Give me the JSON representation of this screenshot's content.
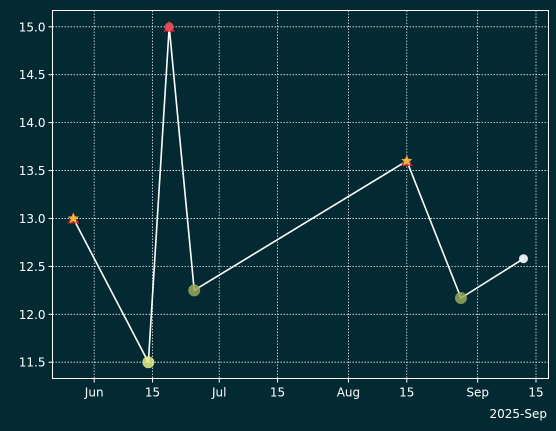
{
  "chart_data": {
    "type": "line",
    "title": "",
    "xlabel": "",
    "ylabel": "",
    "x_axis_type": "date",
    "xlim": [
      "2025-05-22",
      "2025-09-18"
    ],
    "ylim": [
      11.33,
      15.17
    ],
    "x_ticks": [
      {
        "date": "2025-06-01",
        "label": "Jun"
      },
      {
        "date": "2025-06-15",
        "label": "15"
      },
      {
        "date": "2025-07-01",
        "label": "Jul"
      },
      {
        "date": "2025-07-15",
        "label": "15"
      },
      {
        "date": "2025-08-01",
        "label": "Aug"
      },
      {
        "date": "2025-08-15",
        "label": "15"
      },
      {
        "date": "2025-09-01",
        "label": "Sep"
      },
      {
        "date": "2025-09-15",
        "label": "15"
      }
    ],
    "x_offset_label": "2025-Sep",
    "y_ticks": [
      11.5,
      12.0,
      12.5,
      13.0,
      13.5,
      14.0,
      14.5,
      15.0
    ],
    "y_tick_labels": [
      "11.5",
      "12.0",
      "12.5",
      "13.0",
      "13.5",
      "14.0",
      "14.5",
      "15.0"
    ],
    "grid": true,
    "legend": "none",
    "series": [
      {
        "x": [
          "2025-05-27",
          "2025-06-14",
          "2025-06-19",
          "2025-06-25",
          "2025-08-15",
          "2025-08-28",
          "2025-09-12"
        ],
        "values": [
          13.0,
          11.5,
          15.0,
          12.25,
          13.6,
          12.17,
          12.58
        ],
        "line_color": "#ffffff"
      }
    ],
    "markers": [
      {
        "x": "2025-05-27",
        "y": 13.0,
        "shape": "triangle",
        "color": "#cc2233"
      },
      {
        "x": "2025-05-27",
        "y": 13.0,
        "shape": "star",
        "color": "#f2c43a"
      },
      {
        "x": "2025-06-14",
        "y": 11.5,
        "shape": "circle-large",
        "color": "#e8f08a"
      },
      {
        "x": "2025-06-19",
        "y": 15.0,
        "shape": "triangle",
        "color": "#cc2233"
      },
      {
        "x": "2025-06-19",
        "y": 15.0,
        "shape": "circle",
        "color": "#e8505b"
      },
      {
        "x": "2025-06-25",
        "y": 12.25,
        "shape": "circle-large",
        "color": "#9aa85a"
      },
      {
        "x": "2025-08-15",
        "y": 13.6,
        "shape": "triangle",
        "color": "#cc2233"
      },
      {
        "x": "2025-08-15",
        "y": 13.6,
        "shape": "star",
        "color": "#f2c43a"
      },
      {
        "x": "2025-08-28",
        "y": 12.17,
        "shape": "circle-large",
        "color": "#9aa85a"
      },
      {
        "x": "2025-09-12",
        "y": 12.58,
        "shape": "circle",
        "color": "#ffffff"
      }
    ],
    "colors": {
      "background": "#032933",
      "axes_face": "#032933",
      "spine": "#ffffff",
      "grid": "#ffffff",
      "text": "#ffffff"
    }
  }
}
